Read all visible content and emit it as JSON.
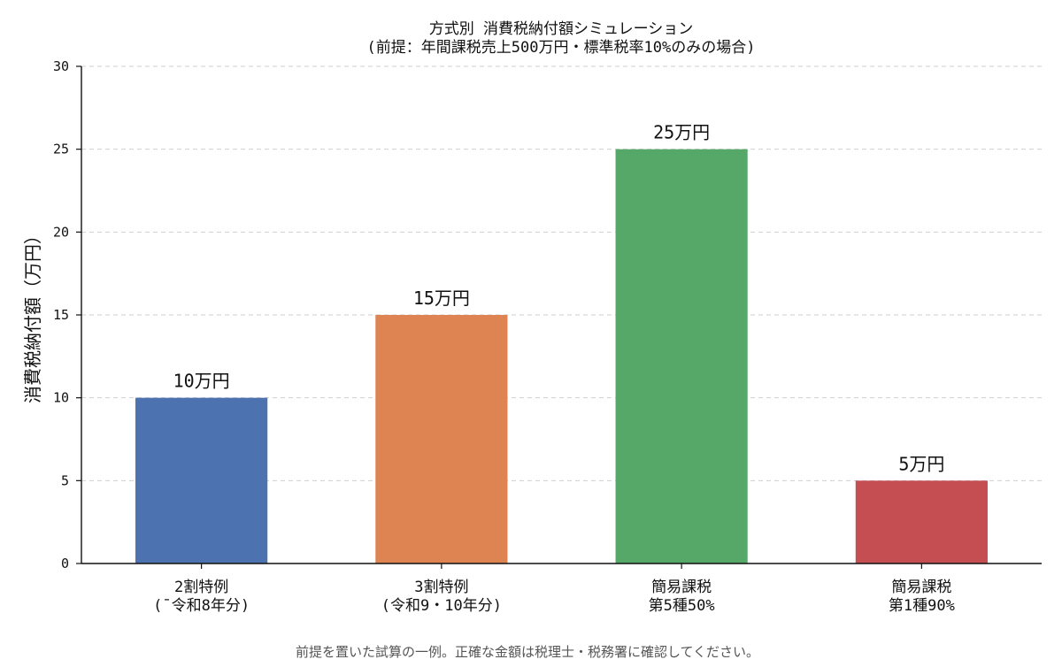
{
  "chart_data": {
    "type": "bar",
    "title": "方式別 消費税納付額シミュレーション",
    "subtitle": "(前提：年間課税売上500万円・標準税率10%のみの場合)",
    "ylabel": "消費税納付額（万円）",
    "xlabel": "",
    "ylim": [
      0,
      30
    ],
    "yticks": [
      0,
      5,
      10,
      15,
      20,
      25,
      30
    ],
    "grid": true,
    "categories": [
      [
        "2割特例",
        "(ˉ令和8年分)"
      ],
      [
        "3割特例",
        "(令和9・10年分)"
      ],
      [
        "簡易課税",
        "第5種50%"
      ],
      [
        "簡易課税",
        "第1種90%"
      ]
    ],
    "values": [
      10,
      15,
      25,
      5
    ],
    "data_labels": [
      "10万円",
      "15万円",
      "25万円",
      "5万円"
    ],
    "colors": [
      "#4c72b0",
      "#dd8452",
      "#55a868",
      "#c44e52"
    ]
  },
  "footnote": "前提を置いた試算の一例。正確な金額は税理士・税務署に確認してください。"
}
